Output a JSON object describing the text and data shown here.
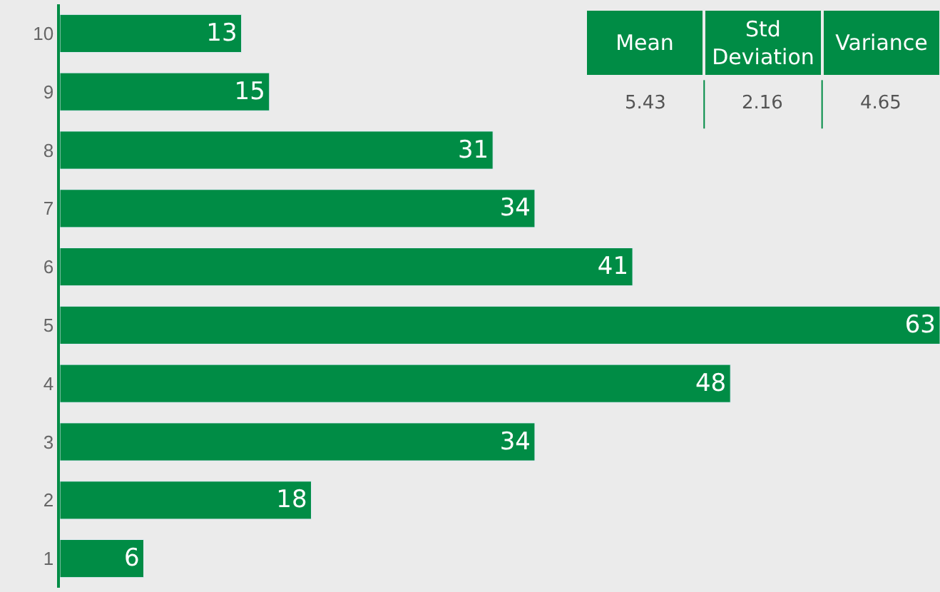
{
  "chart_data": {
    "type": "bar",
    "orientation": "horizontal",
    "data_labels": true,
    "color": "#008c45",
    "categories": [
      "10",
      "9",
      "8",
      "7",
      "6",
      "5",
      "4",
      "3",
      "2",
      "1"
    ],
    "values": [
      13,
      15,
      31,
      34,
      41,
      63,
      48,
      34,
      18,
      6
    ],
    "annotations": [
      "Mean",
      "Std Deviation",
      "Variance",
      "5.43",
      "2.16",
      "4.65"
    ],
    "grid": false,
    "legend": false
  }
}
